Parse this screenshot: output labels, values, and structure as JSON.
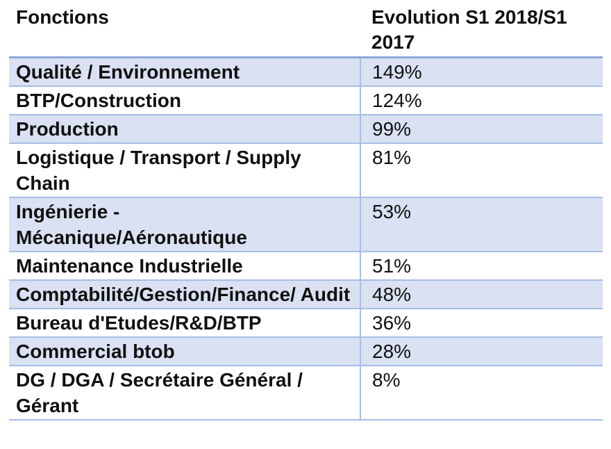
{
  "table": {
    "headers": [
      "Fonctions",
      "Evolution S1 2018/S1 2017"
    ],
    "rows": [
      {
        "fonction": "Qualité / Environnement",
        "evolution": "149%"
      },
      {
        "fonction": "BTP/Construction",
        "evolution": "124%"
      },
      {
        "fonction": "Production",
        "evolution": "99%"
      },
      {
        "fonction": "Logistique / Transport / Supply Chain",
        "evolution": "81%"
      },
      {
        "fonction": "Ingénierie - Mécanique/Aéronautique",
        "evolution": "53%"
      },
      {
        "fonction": "Maintenance Industrielle",
        "evolution": "51%"
      },
      {
        "fonction": "Comptabilité/Gestion/Finance/ Audit",
        "evolution": "48%"
      },
      {
        "fonction": "Bureau d'Etudes/R&D/BTP",
        "evolution": "36%"
      },
      {
        "fonction": "Commercial btob",
        "evolution": "28%"
      },
      {
        "fonction": "DG / DGA / Secrétaire Général / Gérant",
        "evolution": "8%"
      }
    ],
    "colors": {
      "stripe": "#d9e1f2",
      "border": "#a7bde3",
      "header_border": "#8ea9d8"
    }
  }
}
